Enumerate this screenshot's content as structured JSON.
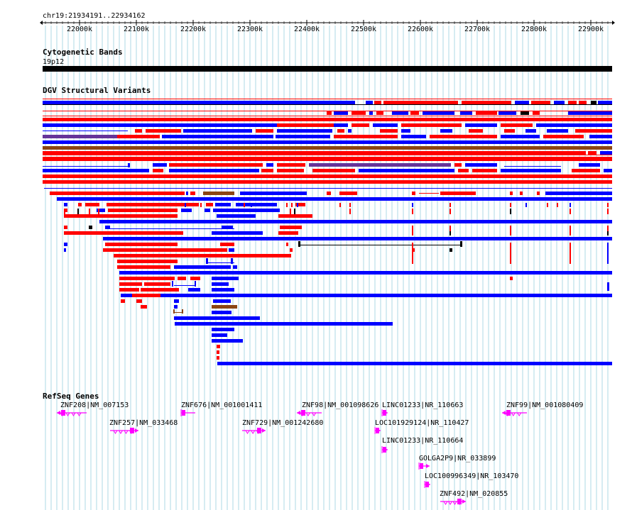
{
  "region": "chr19:21934191..22934162",
  "ruler_ticks": [
    "22000k",
    "22100k",
    "22200k",
    "22300k",
    "22400k",
    "22500k",
    "22600k",
    "22700k",
    "22800k",
    "22900k"
  ],
  "tracks": {
    "cytobands": {
      "title": "Cytogenetic Bands",
      "band_label": "19p12"
    },
    "dgv": {
      "title": "DGV Structural Variants"
    },
    "refseq": {
      "title": "RefSeq Genes"
    }
  },
  "genes": [
    {
      "label": "ZNF208|NM_007153",
      "strand": "-"
    },
    {
      "label": "ZNF257|NM_033468",
      "strand": "+"
    },
    {
      "label": "ZNF676|NM_001001411",
      "strand": "-"
    },
    {
      "label": "ZNF729|NM_001242680",
      "strand": "+"
    },
    {
      "label": "ZNF98|NM_001098626",
      "strand": "-"
    },
    {
      "label": "LINC01233|NR_110663",
      "strand": "+"
    },
    {
      "label": "LOC101929124|NR_110427",
      "strand": "+"
    },
    {
      "label": "LINC01233|NR_110664",
      "strand": "+"
    },
    {
      "label": "GOLGA2P9|NR_033899",
      "strand": "+"
    },
    {
      "label": "LOC100996349|NR_103470",
      "strand": "+"
    },
    {
      "label": "ZNF492|NM_020855",
      "strand": "+"
    },
    {
      "label": "ZNF99|NM_001080409",
      "strand": "-"
    }
  ],
  "colors": {
    "loss": "#ff0000",
    "gain": "#0000ff",
    "both": "#8b4513",
    "inversion": "#663399",
    "gene": "#ff00ff",
    "grid": "#add8e6"
  }
}
